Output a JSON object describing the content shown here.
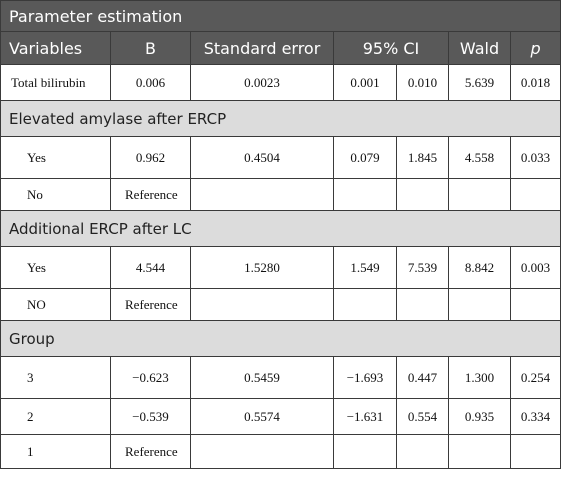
{
  "table": {
    "title": "Parameter estimation",
    "headers": {
      "variables": "Variables",
      "b": "B",
      "se": "Standard error",
      "ci": "95% CI",
      "wald": "Wald",
      "p": "p"
    },
    "sections": [
      {
        "label": "Elevated amylase after ERCP"
      },
      {
        "label": "Additional ERCP after LC"
      },
      {
        "label": "Group"
      }
    ],
    "rows": [
      {
        "label": "Total bilirubin",
        "b": "0.006",
        "se": "0.0023",
        "ci_low": "0.001",
        "ci_high": "0.010",
        "wald": "5.639",
        "p": "0.018"
      },
      {
        "label": "Yes",
        "b": "0.962",
        "se": "0.4504",
        "ci_low": "0.079",
        "ci_high": "1.845",
        "wald": "4.558",
        "p": "0.033"
      },
      {
        "label": "No",
        "b": "Reference",
        "se": "",
        "ci_low": "",
        "ci_high": "",
        "wald": "",
        "p": ""
      },
      {
        "label": "Yes",
        "b": "4.544",
        "se": "1.5280",
        "ci_low": "1.549",
        "ci_high": "7.539",
        "wald": "8.842",
        "p": "0.003"
      },
      {
        "label": "NO",
        "b": "Reference",
        "se": "",
        "ci_low": "",
        "ci_high": "",
        "wald": "",
        "p": ""
      },
      {
        "label": "3",
        "b": "−0.623",
        "se": "0.5459",
        "ci_low": "−1.693",
        "ci_high": "0.447",
        "wald": "1.300",
        "p": "0.254"
      },
      {
        "label": "2",
        "b": "−0.539",
        "se": "0.5574",
        "ci_low": "−1.631",
        "ci_high": "0.554",
        "wald": "0.935",
        "p": "0.334"
      },
      {
        "label": "1",
        "b": "Reference",
        "se": "",
        "ci_low": "",
        "ci_high": "",
        "wald": "",
        "p": ""
      }
    ]
  },
  "colors": {
    "header_bg": "#595959",
    "section_bg": "#dcdcdc",
    "header_text": "#ffffff"
  }
}
